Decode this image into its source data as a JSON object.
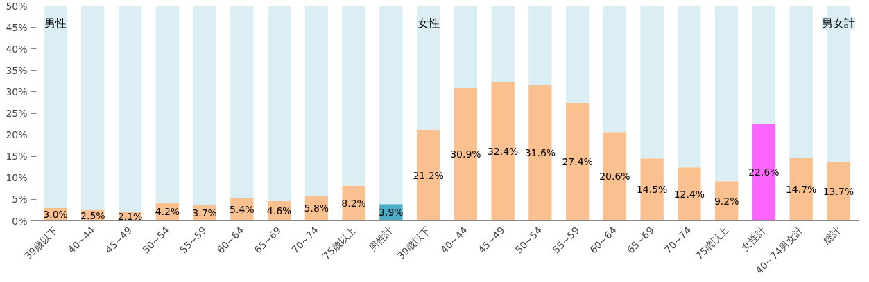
{
  "chart_data": {
    "type": "bar",
    "stacked": true,
    "categories": [
      "39歳以下",
      "40~44",
      "45~49",
      "50~54",
      "55~59",
      "60~64",
      "65~69",
      "70~74",
      "75歳以上",
      "男性計",
      "39歳以下",
      "40~44",
      "45~49",
      "50~54",
      "55~59",
      "60~64",
      "65~69",
      "70~74",
      "75歳以上",
      "女性計",
      "40~74男女計",
      "総計"
    ],
    "series": [
      {
        "values": [
          3.0,
          2.5,
          2.1,
          4.2,
          3.7,
          5.4,
          4.6,
          5.8,
          8.2,
          3.9,
          21.2,
          30.9,
          32.4,
          31.6,
          27.4,
          20.6,
          14.5,
          12.4,
          9.2,
          22.6,
          14.7,
          13.7
        ],
        "colors": [
          "#fac090",
          "#fac090",
          "#fac090",
          "#fac090",
          "#fac090",
          "#fac090",
          "#fac090",
          "#fac090",
          "#fac090",
          "#4bacc6",
          "#fac090",
          "#fac090",
          "#fac090",
          "#fac090",
          "#fac090",
          "#fac090",
          "#fac090",
          "#fac090",
          "#fac090",
          "#ff66ff",
          "#fac090",
          "#fac090"
        ],
        "value_labels": [
          "3.0%",
          "2.5%",
          "2.1%",
          "4.2%",
          "3.7%",
          "5.4%",
          "4.6%",
          "5.8%",
          "8.2%",
          "3.9%",
          "21.2%",
          "30.9%",
          "32.4%",
          "31.6%",
          "27.4%",
          "20.6%",
          "14.5%",
          "12.4%",
          "9.2%",
          "22.6%",
          "14.7%",
          "13.7%"
        ]
      },
      {
        "color": "#daeef3",
        "values": [
          47.0,
          47.5,
          47.9,
          45.8,
          46.3,
          44.6,
          45.4,
          44.2,
          41.8,
          46.1,
          28.8,
          19.1,
          17.6,
          18.4,
          22.6,
          29.4,
          35.5,
          37.6,
          40.8,
          27.4,
          35.3,
          36.3
        ]
      }
    ],
    "ylim": [
      0,
      50
    ],
    "yticks": [
      {
        "value": 0,
        "label": "0%"
      },
      {
        "value": 5,
        "label": "5%"
      },
      {
        "value": 10,
        "label": "10%"
      },
      {
        "value": 15,
        "label": "15%"
      },
      {
        "value": 20,
        "label": "20%"
      },
      {
        "value": 25,
        "label": "25%"
      },
      {
        "value": 30,
        "label": "30%"
      },
      {
        "value": 35,
        "label": "35%"
      },
      {
        "value": 40,
        "label": "40%"
      },
      {
        "value": 45,
        "label": "45%"
      },
      {
        "value": 50,
        "label": "50%"
      }
    ],
    "grid": false,
    "annotations": [
      "男性",
      "女性",
      "男女計"
    ]
  }
}
